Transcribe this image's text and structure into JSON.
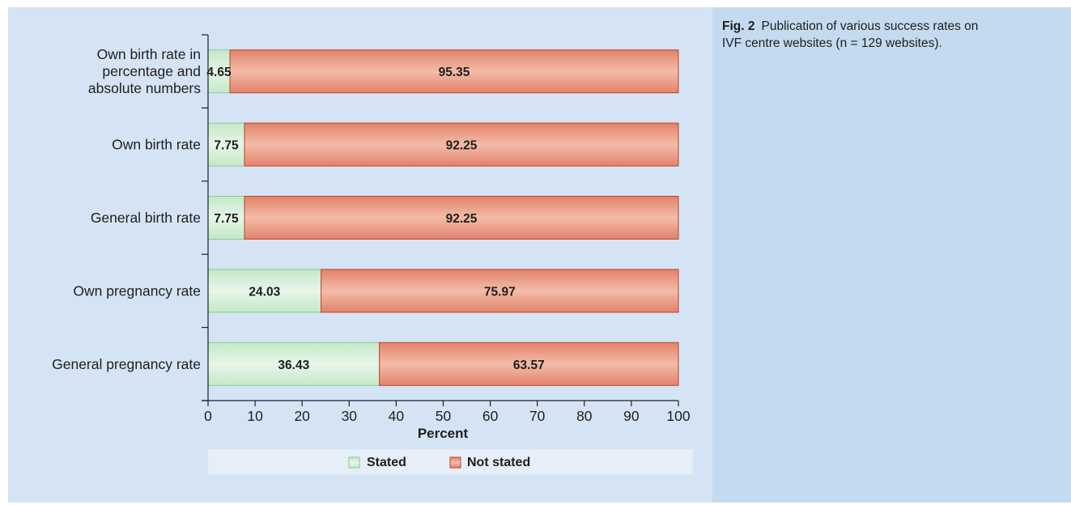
{
  "caption": {
    "label": "Fig. 2",
    "text": "Publication of various success rates on IVF centre websites (n = 129 websites)."
  },
  "colors": {
    "stated_fill": "#d3efd6",
    "stated_stroke": "#8dc898",
    "not_stated_fill": "#e99c84",
    "not_stated_stroke": "#b9472d",
    "figure_background": "#d5e4f4",
    "caption_background": "#c4dbef",
    "legend_background": "#e6eef8"
  },
  "chart_data": {
    "type": "bar",
    "orientation": "horizontal",
    "stacked": true,
    "categories": [
      [
        "Own birth rate in",
        "percentage and",
        "absolute numbers"
      ],
      [
        "Own birth rate"
      ],
      [
        "General birth rate"
      ],
      [
        "Own pregnancy rate"
      ],
      [
        "General pregnancy rate"
      ]
    ],
    "series": [
      {
        "name": "Stated",
        "values": [
          4.65,
          7.75,
          7.75,
          24.03,
          36.43
        ],
        "labels": [
          "4.65",
          "7.75",
          "7.75",
          "24.03",
          "36.43"
        ]
      },
      {
        "name": "Not stated",
        "values": [
          95.35,
          92.25,
          92.25,
          75.97,
          63.57
        ],
        "labels": [
          "95.35",
          "92.25",
          "92.25",
          "75.97",
          "63.57"
        ]
      }
    ],
    "xlabel": "Percent",
    "xlim": [
      0,
      100
    ],
    "xticks": [
      0,
      10,
      20,
      30,
      40,
      50,
      60,
      70,
      80,
      90,
      100
    ],
    "grid": false,
    "legend": "bottom"
  }
}
